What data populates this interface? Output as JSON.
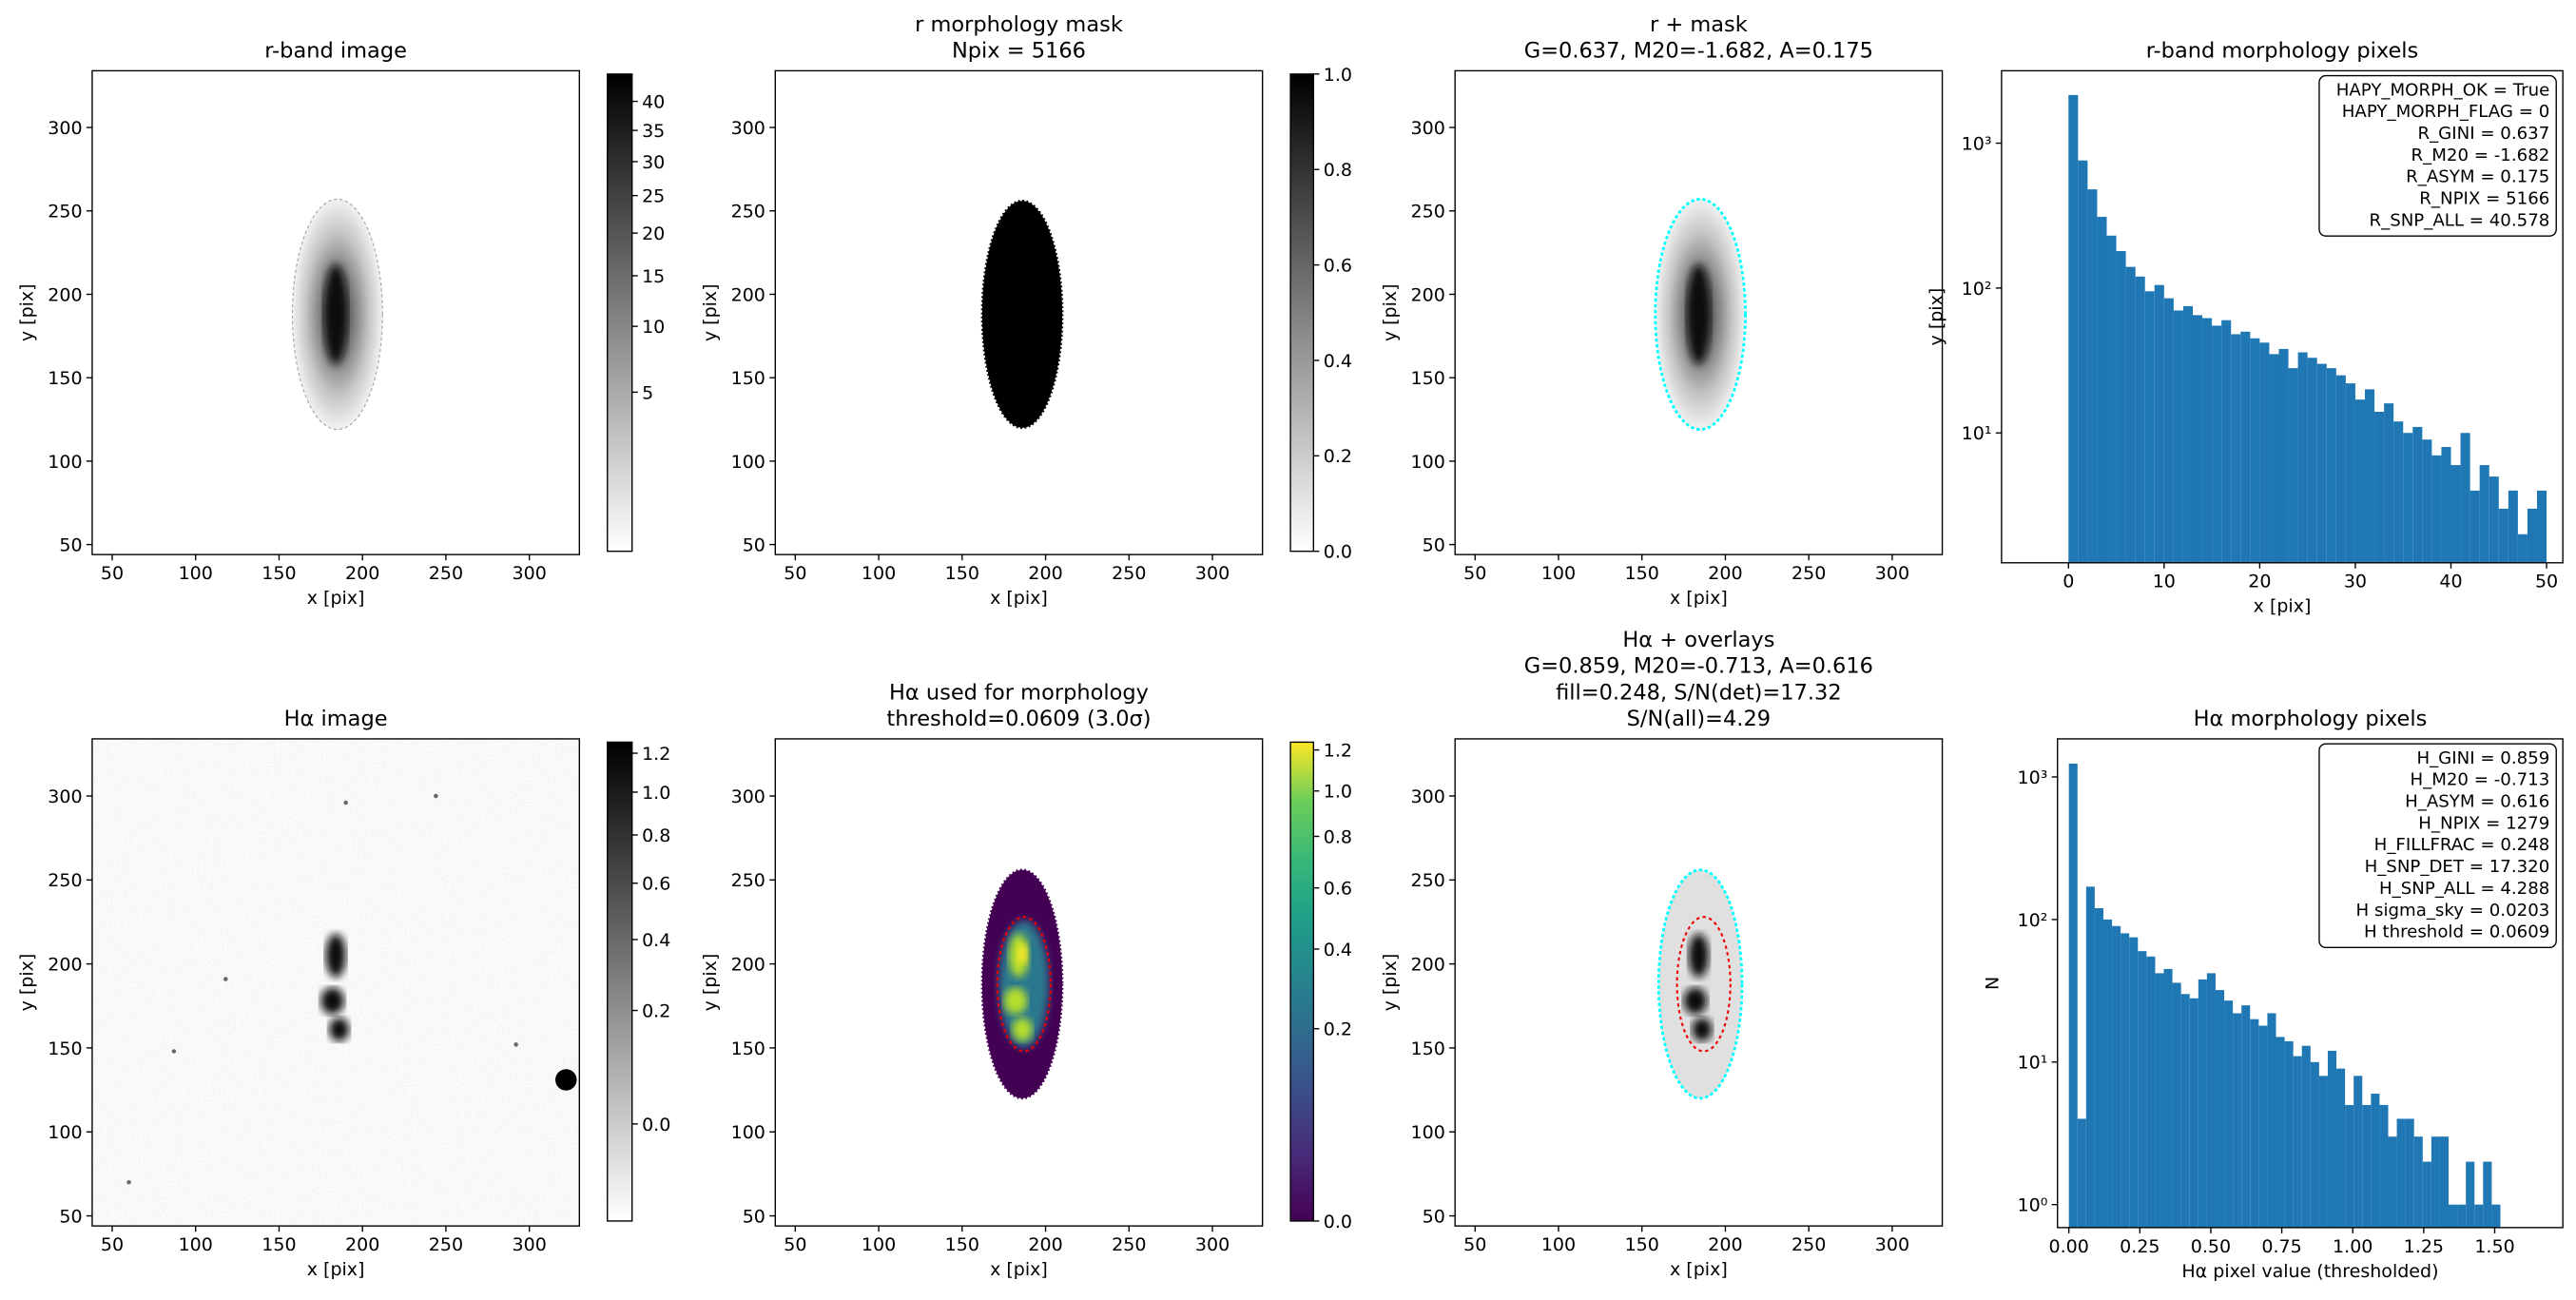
{
  "chart_data": [
    {
      "type": "image",
      "title": [
        "r-band image"
      ],
      "xlabel": "x [pix]",
      "ylabel": "y [pix]",
      "xlim": [
        38,
        330
      ],
      "ylim": [
        44,
        334
      ],
      "xticks": [
        50,
        100,
        150,
        200,
        250,
        300
      ],
      "yticks": [
        50,
        100,
        150,
        200,
        250,
        300
      ],
      "colorbar": {
        "cmap": "gray_r",
        "clim": [
          0,
          45
        ],
        "stretch": "sqrt",
        "ticks": [
          5,
          10,
          15,
          20,
          25,
          30,
          35,
          40
        ]
      }
    },
    {
      "type": "image",
      "title": [
        "r morphology mask",
        "Npix = 5166"
      ],
      "xlabel": "x [pix]",
      "ylabel": "y [pix]",
      "xlim": [
        38,
        330
      ],
      "ylim": [
        44,
        334
      ],
      "xticks": [
        50,
        100,
        150,
        200,
        250,
        300
      ],
      "yticks": [
        50,
        100,
        150,
        200,
        250,
        300
      ],
      "colorbar": {
        "cmap": "gray_r",
        "clim": [
          0,
          1
        ],
        "stretch": "linear",
        "ticks": [
          {
            "value": 0,
            "label": "0.0"
          },
          0.2,
          0.4,
          0.6,
          0.8,
          {
            "value": 1,
            "label": "1.0"
          }
        ]
      }
    },
    {
      "type": "image",
      "title": [
        "r + mask",
        "G=0.637, M20=-1.682, A=0.175"
      ],
      "xlabel": "x [pix]",
      "ylabel": "y [pix]",
      "xlim": [
        38,
        330
      ],
      "ylim": [
        44,
        334
      ],
      "xticks": [
        50,
        100,
        150,
        200,
        250,
        300
      ],
      "yticks": [
        50,
        100,
        150,
        200,
        250,
        300
      ]
    },
    {
      "type": "histogram",
      "title": [
        "r-band morphology pixels"
      ],
      "xlabel": "x [pix]",
      "ylabel": "y [pix]",
      "color": "#1f77b4",
      "yscale": "log",
      "xlim": [
        -7,
        51.7
      ],
      "ylim": [
        1.27,
        3160
      ],
      "xticks": [
        0,
        10,
        20,
        30,
        40,
        50
      ],
      "yticks": [
        {
          "value": 10,
          "label": "10¹"
        },
        {
          "value": 100,
          "label": "10²"
        },
        {
          "value": 1000,
          "label": "10³"
        }
      ],
      "bins": [
        0,
        1,
        2,
        3,
        4,
        5,
        6,
        7,
        8,
        9,
        10,
        11,
        12,
        13,
        14,
        15,
        16,
        17,
        18,
        19,
        20,
        21,
        22,
        23,
        24,
        25,
        26,
        27,
        28,
        29,
        30,
        31,
        32,
        33,
        34,
        35,
        36,
        37,
        38,
        39,
        40,
        41,
        42,
        43,
        44,
        45,
        46,
        47,
        48,
        49,
        50
      ],
      "values": [
        2150,
        760,
        480,
        310,
        230,
        180,
        140,
        120,
        95,
        105,
        85,
        70,
        75,
        65,
        62,
        55,
        60,
        48,
        50,
        45,
        42,
        35,
        38,
        28,
        36,
        33,
        30,
        28,
        25,
        22,
        17,
        20,
        14,
        16,
        12,
        10,
        11,
        9,
        7,
        8,
        6,
        10,
        4,
        6,
        5,
        3,
        4,
        2,
        3,
        4
      ],
      "annotation": [
        "HAPY_MORPH_OK = True",
        "HAPY_MORPH_FLAG = 0",
        "R_GINI = 0.637",
        "R_M20 = -1.682",
        "R_ASYM = 0.175",
        "R_NPIX = 5166",
        "R_SNP_ALL = 40.578"
      ]
    },
    {
      "type": "image",
      "title": [
        "Hα image"
      ],
      "xlabel": "x [pix]",
      "ylabel": "y [pix]",
      "xlim": [
        38,
        330
      ],
      "ylim": [
        44,
        334
      ],
      "xticks": [
        50,
        100,
        150,
        200,
        250,
        300
      ],
      "yticks": [
        50,
        100,
        150,
        200,
        250,
        300
      ],
      "colorbar": {
        "cmap": "gray_r",
        "clim": [
          -0.054,
          1.26
        ],
        "stretch": "sqrt",
        "ticks": [
          {
            "value": 0,
            "label": "0.0"
          },
          0.2,
          0.4,
          0.6,
          0.8,
          {
            "value": 1,
            "label": "1.0"
          },
          1.2
        ]
      }
    },
    {
      "type": "image",
      "title": [
        "Hα used for morphology",
        "threshold=0.0609 (3.0σ)"
      ],
      "xlabel": "x [pix]",
      "ylabel": "y [pix]",
      "xlim": [
        38,
        330
      ],
      "ylim": [
        44,
        334
      ],
      "xticks": [
        50,
        100,
        150,
        200,
        250,
        300
      ],
      "yticks": [
        50,
        100,
        150,
        200,
        250,
        300
      ],
      "colorbar": {
        "cmap": "viridis",
        "clim": [
          0,
          1.24
        ],
        "stretch": "sqrt",
        "ticks": [
          {
            "value": 0,
            "label": "0.0"
          },
          0.2,
          0.4,
          0.6,
          0.8,
          {
            "value": 1,
            "label": "1.0"
          },
          1.2
        ]
      }
    },
    {
      "type": "image",
      "title": [
        "Hα + overlays",
        "G=0.859, M20=-0.713, A=0.616",
        "fill=0.248, S/N(det)=17.32",
        "S/N(all)=4.29"
      ],
      "xlabel": "x [pix]",
      "ylabel": "y [pix]",
      "xlim": [
        38,
        330
      ],
      "ylim": [
        44,
        334
      ],
      "xticks": [
        50,
        100,
        150,
        200,
        250,
        300
      ],
      "yticks": [
        50,
        100,
        150,
        200,
        250,
        300
      ]
    },
    {
      "type": "histogram",
      "title": [
        "Hα morphology pixels"
      ],
      "xlabel": "Hα pixel value (thresholded)",
      "ylabel": "N",
      "color": "#1f77b4",
      "yscale": "log",
      "xlim": [
        -0.04,
        1.74
      ],
      "ylim": [
        0.69,
        1850
      ],
      "xticks": [
        {
          "value": 0,
          "label": "0.00"
        },
        0.25,
        {
          "value": 0.5,
          "label": "0.50"
        },
        0.75,
        {
          "value": 1,
          "label": "1.00"
        },
        1.25,
        {
          "value": 1.5,
          "label": "1.50"
        }
      ],
      "yticks": [
        {
          "value": 1,
          "label": "10⁰"
        },
        {
          "value": 10,
          "label": "10¹"
        },
        {
          "value": 100,
          "label": "10²"
        },
        {
          "value": 1000,
          "label": "10³"
        }
      ],
      "bins": [
        0,
        0.0304,
        0.0608,
        0.0912,
        0.1216,
        0.152,
        0.1824,
        0.2128,
        0.2432,
        0.2736,
        0.304,
        0.3344,
        0.3648,
        0.3952,
        0.4256,
        0.456,
        0.4864,
        0.5168,
        0.5472,
        0.5776,
        0.608,
        0.6384,
        0.6688,
        0.6992,
        0.7296,
        0.76,
        0.7904,
        0.8208,
        0.8512,
        0.8816,
        0.912,
        0.9424,
        0.9728,
        1.0032,
        1.0336,
        1.064,
        1.0944,
        1.1248,
        1.1552,
        1.1856,
        1.216,
        1.2464,
        1.2768,
        1.3072,
        1.3376,
        1.368,
        1.3984,
        1.4288,
        1.4592,
        1.4896,
        1.52
      ],
      "values": [
        1240,
        4,
        170,
        120,
        100,
        90,
        80,
        75,
        60,
        55,
        42,
        45,
        36,
        30,
        28,
        38,
        42,
        32,
        27,
        22,
        25,
        20,
        18,
        22,
        15,
        14,
        11,
        13,
        10,
        8,
        12,
        9,
        5,
        8,
        5,
        6,
        5,
        3,
        4,
        4,
        3,
        2,
        3,
        3,
        1,
        1,
        2,
        1,
        2,
        1
      ],
      "annotation": [
        "H_GINI = 0.859",
        "H_M20 = -0.713",
        "H_ASYM = 0.616",
        "H_NPIX = 1279",
        "H_FILLFRAC = 0.248",
        "H_SNP_DET = 17.320",
        "H_SNP_ALL = 4.288",
        "H sigma_sky = 0.0203",
        "H threshold = 0.0609"
      ]
    }
  ]
}
